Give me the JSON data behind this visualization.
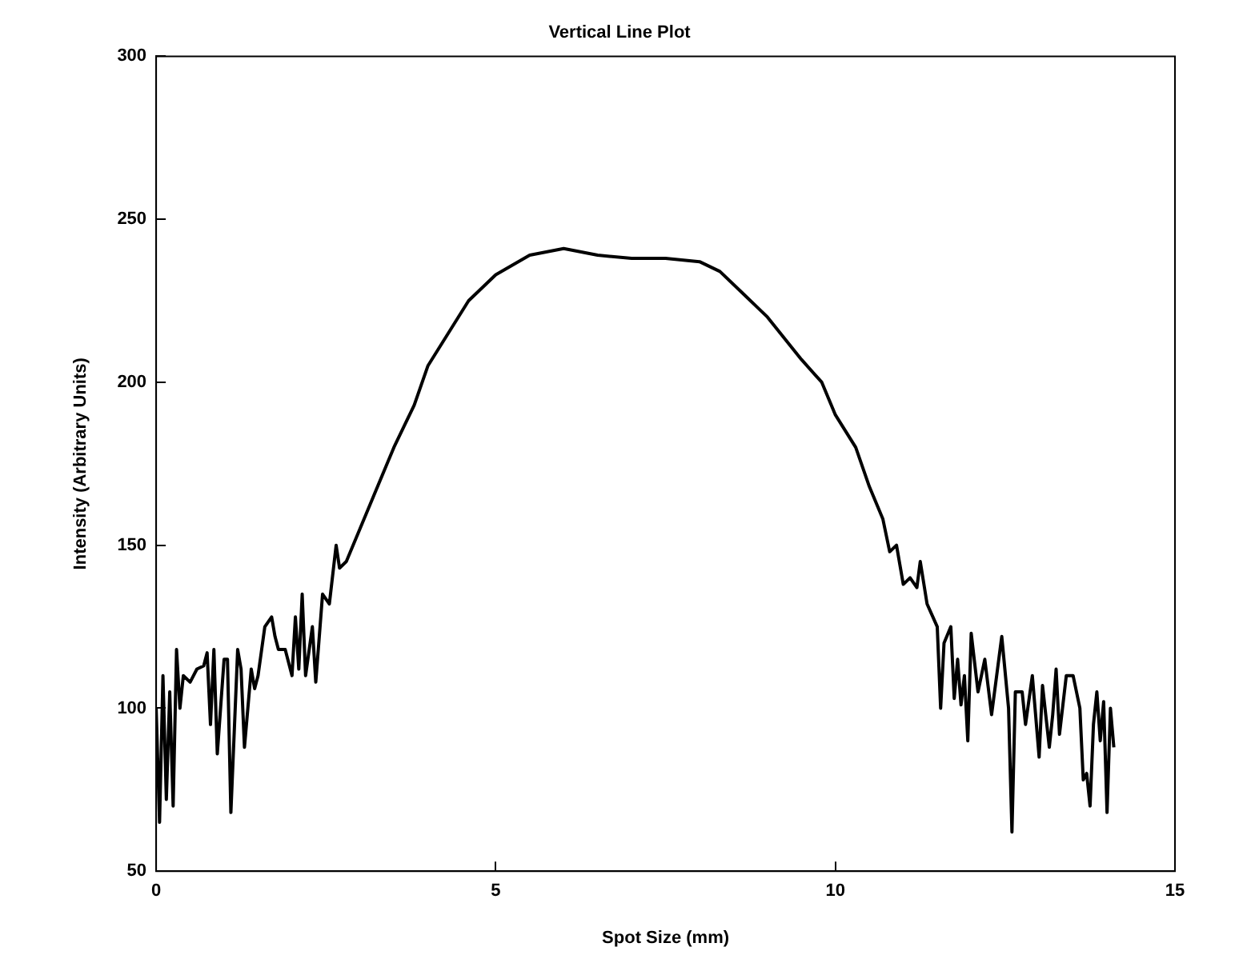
{
  "chart_data": {
    "type": "line",
    "title": "Vertical Line Plot",
    "xlabel": "Spot Size (mm)",
    "ylabel": "Intensity (Arbitrary Units)",
    "xlim": [
      0,
      15
    ],
    "xticks": [
      0,
      5,
      10,
      15
    ],
    "ylim": [
      50,
      300
    ],
    "yticks": [
      50,
      100,
      150,
      200,
      250,
      300
    ],
    "grid": false,
    "legend": false,
    "marker": "none",
    "line_style": "solid",
    "series": [
      {
        "color": "#000000",
        "x": [
          0,
          0.05,
          0.1,
          0.15,
          0.2,
          0.25,
          0.3,
          0.35,
          0.4,
          0.5,
          0.6,
          0.7,
          0.75,
          0.8,
          0.85,
          0.9,
          1.0,
          1.05,
          1.1,
          1.2,
          1.25,
          1.3,
          1.4,
          1.45,
          1.5,
          1.6,
          1.7,
          1.75,
          1.8,
          1.9,
          2.0,
          2.05,
          2.1,
          2.15,
          2.2,
          2.3,
          2.35,
          2.45,
          2.55,
          2.65,
          2.7,
          2.8,
          3.0,
          3.2,
          3.4,
          3.5,
          3.8,
          4.0,
          4.3,
          4.6,
          5.0,
          5.5,
          6.0,
          6.5,
          7.0,
          7.5,
          8.0,
          8.3,
          8.6,
          9.0,
          9.5,
          9.8,
          10.0,
          10.3,
          10.5,
          10.7,
          10.8,
          10.9,
          11.0,
          11.1,
          11.2,
          11.25,
          11.35,
          11.5,
          11.55,
          11.6,
          11.7,
          11.75,
          11.8,
          11.85,
          11.9,
          11.95,
          12.0,
          12.1,
          12.2,
          12.3,
          12.45,
          12.55,
          12.6,
          12.65,
          12.75,
          12.8,
          12.9,
          13.0,
          13.05,
          13.15,
          13.2,
          13.25,
          13.3,
          13.4,
          13.5,
          13.6,
          13.65,
          13.7,
          13.75,
          13.8,
          13.85,
          13.9,
          13.95,
          14.0,
          14.05,
          14.1
        ],
        "values": [
          100,
          65,
          110,
          72,
          105,
          70,
          118,
          100,
          110,
          108,
          112,
          113,
          117,
          95,
          118,
          86,
          115,
          115,
          68,
          118,
          112,
          88,
          112,
          106,
          110,
          125,
          128,
          122,
          118,
          118,
          110,
          128,
          112,
          135,
          110,
          125,
          108,
          135,
          132,
          150,
          143,
          145,
          155,
          165,
          175,
          180,
          193,
          205,
          215,
          225,
          233,
          239,
          241,
          239,
          238,
          238,
          237,
          234,
          228,
          220,
          207,
          200,
          190,
          180,
          168,
          158,
          148,
          150,
          138,
          140,
          137,
          145,
          132,
          125,
          100,
          120,
          125,
          103,
          115,
          101,
          110,
          90,
          123,
          105,
          115,
          98,
          122,
          100,
          62,
          105,
          105,
          95,
          110,
          85,
          107,
          88,
          98,
          112,
          92,
          110,
          110,
          100,
          78,
          80,
          70,
          95,
          105,
          90,
          102,
          68,
          100,
          88
        ]
      }
    ]
  }
}
